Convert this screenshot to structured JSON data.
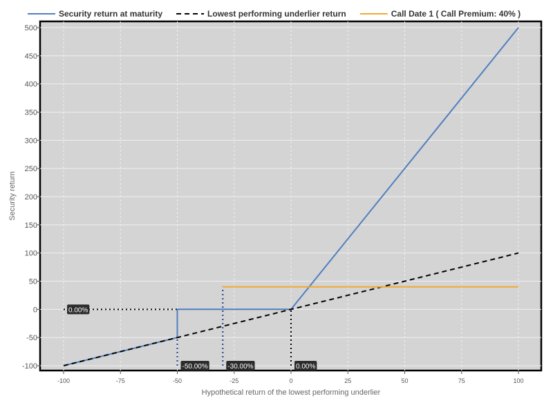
{
  "chart_data": {
    "type": "line",
    "xlabel": "Hypothetical return of the lowest performing underlier",
    "ylabel": "Security return",
    "xlim": [
      -100,
      100
    ],
    "ylim": [
      -100,
      500
    ],
    "x_ticks": [
      -100,
      -75,
      -50,
      -25,
      0,
      25,
      50,
      75,
      100
    ],
    "y_ticks": [
      -100,
      -50,
      0,
      50,
      100,
      150,
      200,
      250,
      300,
      350,
      400,
      450,
      500
    ],
    "grid": true,
    "legend_position": "top",
    "series": [
      {
        "name": "Security return at maturity",
        "style": "solid",
        "color": "#4f7fbf",
        "points": [
          [
            -100,
            -100
          ],
          [
            -50,
            -50
          ],
          [
            -50,
            0
          ],
          [
            0,
            0
          ],
          [
            100,
            500
          ]
        ]
      },
      {
        "name": "Lowest performing underlier return",
        "style": "dashed",
        "color": "#000000",
        "points": [
          [
            -100,
            -100
          ],
          [
            100,
            100
          ]
        ]
      },
      {
        "name": "Call Date 1 ( Call Premium: 40% )",
        "style": "solid",
        "color": "#f2a830",
        "points": [
          [
            -30,
            40
          ],
          [
            100,
            40
          ]
        ]
      }
    ],
    "reference_lines": [
      {
        "color": "#000000",
        "points": [
          [
            -100,
            0
          ],
          [
            -50,
            0
          ]
        ]
      },
      {
        "color": "#000000",
        "points": [
          [
            0,
            -100
          ],
          [
            0,
            0
          ]
        ]
      },
      {
        "color": "#1f3a8a",
        "points": [
          [
            -50,
            -100
          ],
          [
            -50,
            0
          ]
        ]
      },
      {
        "color": "#1f3a8a",
        "points": [
          [
            -30,
            -100
          ],
          [
            -30,
            40
          ]
        ]
      }
    ],
    "annotations": [
      {
        "text": "0.00%",
        "x": -100,
        "y": 0
      },
      {
        "text": "-50.00%",
        "x": -50,
        "y": -100
      },
      {
        "text": "-30.00%",
        "x": -30,
        "y": -100
      },
      {
        "text": "0.00%",
        "x": 0,
        "y": -100
      }
    ]
  }
}
